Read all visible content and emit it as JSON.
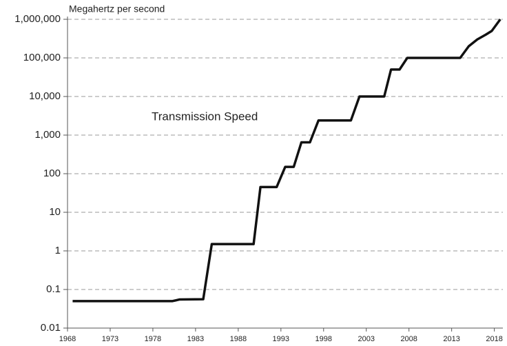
{
  "chart_data": {
    "type": "line",
    "y_label": "Megahertz per second",
    "annotation": "Transmission Speed",
    "log_y": true,
    "grid": true,
    "xlim": [
      1968,
      2019
    ],
    "xticks": [
      1968,
      1973,
      1978,
      1983,
      1988,
      1993,
      1998,
      2003,
      2008,
      2013,
      2018
    ],
    "ylim": [
      0.01,
      1000000
    ],
    "yticks": [
      0.01,
      0.1,
      1,
      10,
      100,
      {
        "value": 1000,
        "label": "1,000"
      },
      {
        "value": 10000,
        "label": "10,000"
      },
      {
        "value": 100000,
        "label": "100,000"
      },
      {
        "value": 1000000,
        "label": "1,000,000"
      }
    ],
    "series": [
      {
        "name": "Transmission Speed",
        "color": "#111111",
        "x": [
          1968.6,
          1980.3,
          1981.1,
          1983.9,
          1984.9,
          1989.8,
          1990.6,
          1992.5,
          1993.5,
          1994.5,
          1995.4,
          1996.4,
          1997.4,
          2001.2,
          2002.2,
          2005.1,
          2005.9,
          2006.9,
          2007.8,
          2014,
          2015,
          2016,
          2017,
          2017.7,
          2018.7
        ],
        "values": [
          0.05,
          0.05,
          0.055,
          0.056,
          1.5,
          1.5,
          45,
          45,
          150,
          150,
          650,
          650,
          2400,
          2400,
          10000,
          10000,
          50000,
          50000,
          100000,
          100000,
          200000,
          300000,
          400000,
          500000,
          1000000
        ]
      }
    ]
  }
}
